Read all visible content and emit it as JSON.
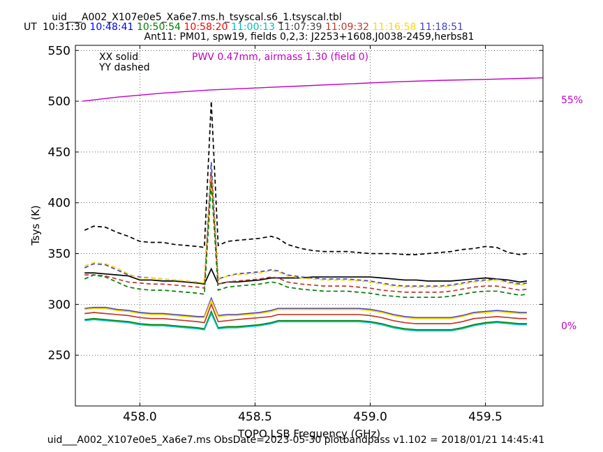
{
  "header": {
    "title": "uid___A002_X107e0e5_Xa6e7.ms.h_tsyscal.s6_1.tsyscal.tbl",
    "ut_label": "UT",
    "times": [
      {
        "text": "10:31:30",
        "color": "#000000"
      },
      {
        "text": "10:48:41",
        "color": "#0000ff"
      },
      {
        "text": "10:50:54",
        "color": "#008000"
      },
      {
        "text": "10:58:20",
        "color": "#ff0000"
      },
      {
        "text": "11:00:13",
        "color": "#00bfbf"
      },
      {
        "text": "11:07:39",
        "color": "#404040"
      },
      {
        "text": "11:09:32",
        "color": "#c0392b"
      },
      {
        "text": "11:16:58",
        "color": "#ffd700"
      },
      {
        "text": "11:18:51",
        "color": "#4040c0"
      }
    ],
    "subtitle": "Ant11: PM01,  spw19,  fields 0,2,3: J2253+1608,J0038-2459,herbs81"
  },
  "footer": {
    "text": "uid___A002_X107e0e5_Xa6e7.ms  ObsDate=2023-05-30   plotbandpass v1.102 = 2018/01/21 14:45:41"
  },
  "chart_data": {
    "type": "line",
    "xlabel": "TOPO LSB Frequency (GHz)",
    "ylabel": "Tsys (K)",
    "xlim": [
      457.72,
      459.75
    ],
    "ylim": [
      200,
      555
    ],
    "xticks": [
      458.0,
      458.5,
      459.0,
      459.5
    ],
    "xtick_labels": [
      "458.0",
      "458.5",
      "459.0",
      "459.5"
    ],
    "yticks": [
      250,
      300,
      350,
      400,
      450,
      500,
      550
    ],
    "ytick_labels": [
      "250",
      "300",
      "350",
      "400",
      "450",
      "500",
      "550"
    ],
    "grid": true,
    "annotations": {
      "xx": "XX solid",
      "yy": "YY dashed",
      "pwv": "PWV 0.47mm, airmass 1.30 (field 0)",
      "pct_top": "55%",
      "pct_bottom": "0%"
    },
    "pwv_color": "#bf00bf",
    "atm": {
      "x": [
        457.75,
        457.9,
        458.1,
        458.3,
        458.5,
        458.7,
        458.9,
        459.1,
        459.3,
        459.5,
        459.75
      ],
      "y": [
        500,
        504,
        508,
        511,
        513,
        515,
        517,
        519,
        520.5,
        521.5,
        523
      ]
    },
    "x": [
      457.76,
      457.8,
      457.85,
      457.9,
      457.95,
      458.0,
      458.05,
      458.1,
      458.15,
      458.2,
      458.25,
      458.28,
      458.31,
      458.34,
      458.38,
      458.42,
      458.47,
      458.52,
      458.57,
      458.6,
      458.64,
      458.7,
      458.75,
      458.8,
      458.85,
      458.9,
      458.95,
      459.0,
      459.05,
      459.1,
      459.15,
      459.2,
      459.25,
      459.3,
      459.35,
      459.4,
      459.45,
      459.5,
      459.55,
      459.6,
      459.65,
      459.68
    ],
    "series": [
      {
        "style": "dashed",
        "color": "#000000",
        "values": [
          373,
          377,
          376,
          371,
          367,
          362,
          361,
          361,
          359,
          358,
          357,
          356,
          500,
          358,
          362,
          363,
          364,
          365,
          367,
          365,
          359,
          355,
          353,
          352,
          352,
          352,
          351,
          350,
          350,
          350,
          349,
          349,
          350,
          351,
          352,
          354,
          355,
          357,
          356,
          351,
          349,
          350
        ]
      },
      {
        "style": "solid",
        "color": "#000000",
        "values": [
          331,
          331,
          330,
          329,
          328,
          324,
          324,
          323,
          323,
          322,
          321,
          320,
          335,
          320,
          322,
          322,
          323,
          324,
          326,
          326,
          326,
          326,
          327,
          327,
          327,
          327,
          327,
          327,
          326,
          325,
          324,
          324,
          323,
          323,
          323,
          324,
          325,
          326,
          325,
          324,
          322,
          323
        ]
      },
      {
        "style": "dashed",
        "color": "#4040c0",
        "values": [
          336,
          340,
          339,
          334,
          329,
          327,
          326,
          325,
          324,
          323,
          322,
          321,
          440,
          325,
          328,
          330,
          331,
          332,
          334,
          333,
          329,
          327,
          326,
          325,
          325,
          325,
          324,
          323,
          321,
          319,
          318,
          318,
          318,
          318,
          319,
          321,
          323,
          324,
          325,
          322,
          320,
          321
        ]
      },
      {
        "style": "dashed",
        "color": "#ffd700",
        "values": [
          338,
          341,
          340,
          336,
          330,
          326,
          326,
          325,
          324,
          323,
          322,
          321,
          430,
          324,
          328,
          329,
          330,
          331,
          333,
          332,
          328,
          326,
          325,
          324,
          324,
          324,
          323,
          322,
          320,
          318,
          317,
          317,
          317,
          317,
          318,
          320,
          322,
          323,
          324,
          321,
          319,
          320
        ]
      },
      {
        "style": "dashed",
        "color": "#c0392b",
        "values": [
          329,
          329,
          328,
          325,
          322,
          321,
          320,
          320,
          319,
          318,
          317,
          316,
          430,
          320,
          322,
          323,
          324,
          325,
          327,
          326,
          322,
          320,
          319,
          318,
          318,
          318,
          317,
          316,
          314,
          313,
          312,
          312,
          312,
          312,
          313,
          315,
          317,
          318,
          318,
          316,
          314,
          315
        ]
      },
      {
        "style": "dashed",
        "color": "#008000",
        "values": [
          325,
          329,
          327,
          322,
          317,
          315,
          314,
          314,
          313,
          312,
          311,
          310,
          420,
          314,
          317,
          318,
          319,
          320,
          322,
          321,
          317,
          315,
          314,
          313,
          313,
          313,
          312,
          311,
          309,
          308,
          307,
          307,
          307,
          307,
          308,
          310,
          312,
          313,
          313,
          311,
          309,
          310
        ]
      },
      {
        "style": "solid",
        "color": "#4040c0",
        "values": [
          296,
          297,
          297,
          295,
          294,
          292,
          291,
          291,
          290,
          289,
          288,
          288,
          306,
          289,
          290,
          290,
          291,
          292,
          294,
          296,
          296,
          296,
          296,
          296,
          296,
          296,
          296,
          295,
          293,
          290,
          288,
          287,
          287,
          287,
          287,
          289,
          292,
          293,
          294,
          293,
          292,
          292
        ]
      },
      {
        "style": "solid",
        "color": "#ffd700",
        "values": [
          295,
          296,
          296,
          294,
          293,
          291,
          290,
          290,
          289,
          288,
          287,
          287,
          304,
          288,
          289,
          289,
          290,
          291,
          293,
          295,
          295,
          295,
          295,
          295,
          295,
          295,
          295,
          294,
          292,
          289,
          287,
          286,
          286,
          286,
          286,
          288,
          291,
          292,
          293,
          292,
          291,
          291
        ]
      },
      {
        "style": "solid",
        "color": "#c0392b",
        "values": [
          291,
          292,
          291,
          290,
          289,
          287,
          286,
          286,
          285,
          284,
          283,
          282,
          300,
          283,
          284,
          285,
          286,
          287,
          288,
          290,
          290,
          290,
          290,
          290,
          290,
          290,
          290,
          289,
          287,
          284,
          282,
          281,
          281,
          281,
          281,
          283,
          286,
          287,
          288,
          287,
          286,
          286
        ]
      },
      {
        "style": "solid",
        "color": "#008000",
        "values": [
          285,
          286,
          285,
          284,
          283,
          281,
          280,
          280,
          279,
          278,
          277,
          276,
          293,
          277,
          278,
          278,
          279,
          280,
          282,
          284,
          284,
          284,
          284,
          284,
          284,
          284,
          284,
          283,
          281,
          278,
          276,
          275,
          275,
          275,
          275,
          277,
          280,
          282,
          283,
          282,
          281,
          281
        ]
      },
      {
        "style": "solid",
        "color": "#00bfbf",
        "values": [
          284,
          285,
          284,
          283,
          282,
          280,
          279,
          279,
          278,
          277,
          276,
          275,
          291,
          276,
          277,
          277,
          278,
          279,
          281,
          283,
          283,
          283,
          283,
          283,
          283,
          283,
          283,
          282,
          280,
          277,
          275,
          274,
          274,
          274,
          274,
          276,
          279,
          281,
          282,
          281,
          280,
          280
        ]
      }
    ]
  }
}
